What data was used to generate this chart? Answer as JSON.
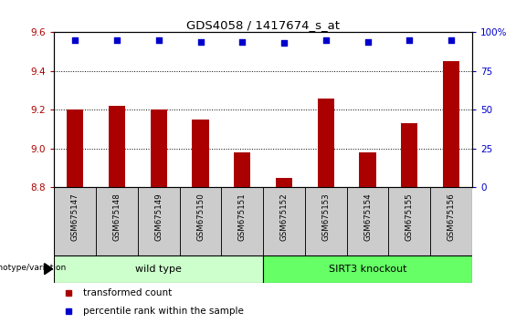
{
  "title": "GDS4058 / 1417674_s_at",
  "samples": [
    "GSM675147",
    "GSM675148",
    "GSM675149",
    "GSM675150",
    "GSM675151",
    "GSM675152",
    "GSM675153",
    "GSM675154",
    "GSM675155",
    "GSM675156"
  ],
  "bar_values": [
    9.2,
    9.22,
    9.2,
    9.15,
    8.98,
    8.85,
    9.26,
    8.98,
    9.13,
    9.45
  ],
  "percentile_values": [
    95,
    95,
    95,
    94,
    94,
    93,
    95,
    94,
    95,
    95
  ],
  "bar_color": "#AA0000",
  "dot_color": "#0000CC",
  "ylim_left": [
    8.8,
    9.6
  ],
  "ylim_right": [
    0,
    100
  ],
  "yticks_left": [
    8.8,
    9.0,
    9.2,
    9.4,
    9.6
  ],
  "yticks_right": [
    0,
    25,
    50,
    75,
    100
  ],
  "group_labels": [
    "wild type",
    "SIRT3 knockout"
  ],
  "group_colors": [
    "#CCFFCC",
    "#66FF66"
  ],
  "genotype_label": "genotype/variation",
  "legend_items": [
    {
      "label": "transformed count",
      "color": "#AA0000"
    },
    {
      "label": "percentile rank within the sample",
      "color": "#0000CC"
    }
  ],
  "bar_width": 0.4,
  "bg_color": "#FFFFFF",
  "sample_bg": "#CCCCCC"
}
